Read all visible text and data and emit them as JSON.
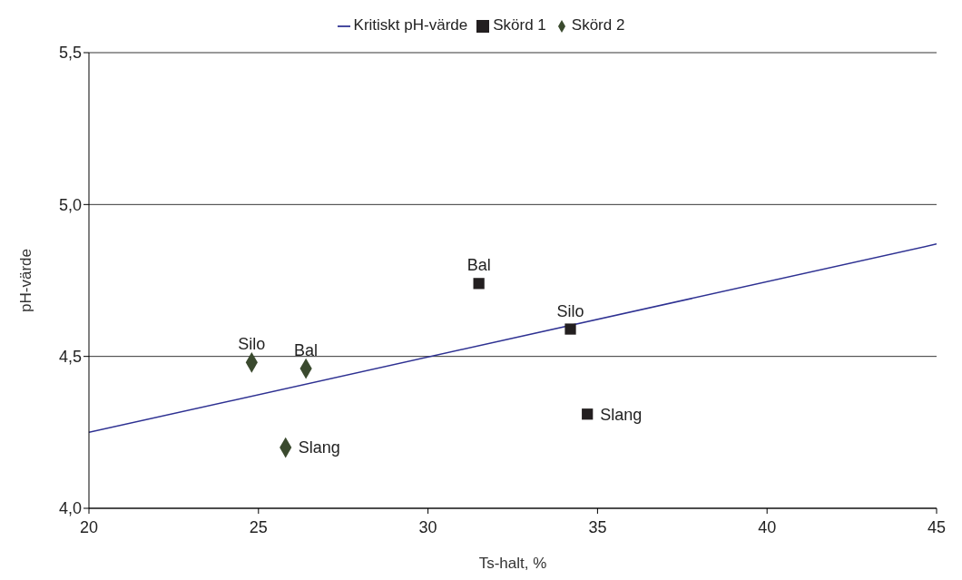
{
  "chart_data": {
    "type": "scatter",
    "xlabel": "Ts-halt, %",
    "ylabel": "pH-värde",
    "xlim": [
      20,
      45
    ],
    "xticks": [
      20,
      25,
      30,
      35,
      40,
      45
    ],
    "ylim": [
      4.0,
      5.5
    ],
    "yticks": [
      {
        "value": 4.0,
        "label": "4,0"
      },
      {
        "value": 4.5,
        "label": "4,5"
      },
      {
        "value": 5.0,
        "label": "5,0"
      },
      {
        "value": 5.5,
        "label": "5,5"
      }
    ],
    "grid": "y",
    "legend": "top",
    "series": [
      {
        "name": "Kritiskt pH-värde",
        "type": "line",
        "color": "#2e3192",
        "x": [
          20,
          45
        ],
        "values": [
          4.25,
          4.87
        ],
        "marker": "none",
        "line_style": "solid"
      },
      {
        "name": "Skörd 1",
        "color": "#231f20",
        "x": [
          31.5,
          34.2,
          34.7
        ],
        "values": [
          4.74,
          4.59,
          4.31
        ],
        "marker": "square"
      },
      {
        "name": "Skörd 2",
        "color": "#3a4a2e",
        "x": [
          24.8,
          26.4,
          25.8
        ],
        "values": [
          4.48,
          4.46,
          4.2
        ],
        "marker": "diamond"
      }
    ],
    "annotations": [
      {
        "text": "Bal",
        "x": 31.5,
        "y": 4.74
      },
      {
        "text": "Silo",
        "x": 34.2,
        "y": 4.59
      },
      {
        "text": "Slang",
        "x": 34.7,
        "y": 4.31
      },
      {
        "text": "Silo",
        "x": 24.8,
        "y": 4.48
      },
      {
        "text": "Bal",
        "x": 26.4,
        "y": 4.46
      },
      {
        "text": "Slang",
        "x": 25.8,
        "y": 4.2
      }
    ]
  }
}
